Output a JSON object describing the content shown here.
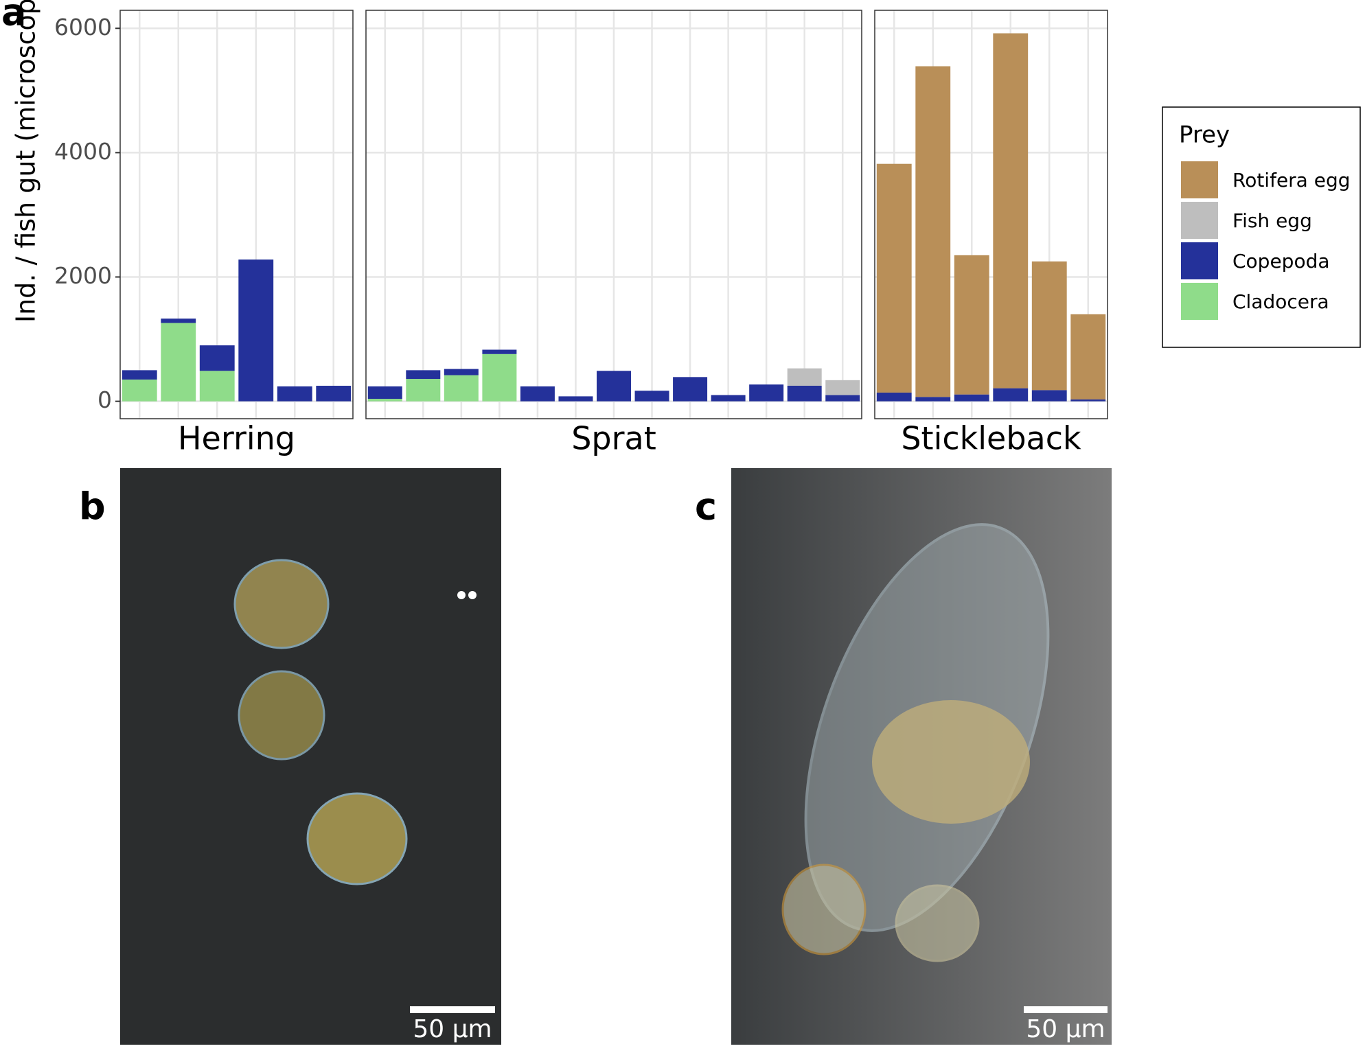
{
  "figure_labels": {
    "a": "a",
    "b": "b",
    "c": "c"
  },
  "images": [
    {
      "scale_bar": "50 µm"
    },
    {
      "scale_bar": "50 µm"
    }
  ],
  "chart_data": {
    "type": "bar",
    "stacked": true,
    "y_label": "Ind. / fish gut (microscopy)",
    "ylim": [
      -280,
      6290
    ],
    "yticks": [
      0,
      2000,
      4000,
      6000
    ],
    "grid": true,
    "legend_title": "Prey",
    "legend_position": "right",
    "series": [
      {
        "name": "Rotifera egg",
        "color": "#b98f58"
      },
      {
        "name": "Fish egg",
        "color": "#bebebe"
      },
      {
        "name": "Copepoda",
        "color": "#24319a"
      },
      {
        "name": "Cladocera",
        "color": "#8fdc8a"
      }
    ],
    "panels": [
      {
        "title": "Herring",
        "values": [
          [
            0,
            0,
            0,
            0,
            0,
            0
          ],
          [
            0,
            0,
            0,
            0,
            0,
            0
          ],
          [
            150,
            70,
            410,
            2280,
            240,
            250
          ],
          [
            350,
            1260,
            490,
            0,
            0,
            0
          ]
        ]
      },
      {
        "title": "Sprat",
        "values": [
          [
            0,
            0,
            0,
            0,
            0,
            0,
            0,
            0,
            0,
            0,
            0,
            0,
            0
          ],
          [
            0,
            0,
            0,
            0,
            0,
            0,
            0,
            0,
            0,
            0,
            0,
            280,
            240
          ],
          [
            200,
            140,
            100,
            70,
            240,
            80,
            490,
            170,
            390,
            100,
            270,
            250,
            100
          ],
          [
            40,
            360,
            420,
            760,
            0,
            0,
            0,
            0,
            0,
            0,
            0,
            0,
            0
          ]
        ]
      },
      {
        "title": "Stickleback",
        "values": [
          [
            3680,
            5320,
            2240,
            5710,
            2070,
            1370
          ],
          [
            0,
            0,
            0,
            0,
            0,
            0
          ],
          [
            140,
            70,
            110,
            210,
            180,
            30
          ],
          [
            0,
            0,
            0,
            0,
            0,
            0
          ]
        ]
      }
    ]
  }
}
